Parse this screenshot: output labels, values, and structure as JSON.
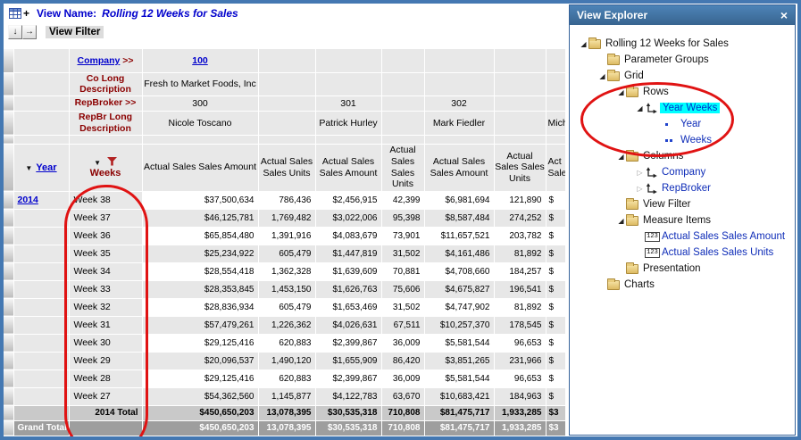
{
  "toolbar": {
    "view_name_label": "View Name:",
    "view_name": "Rolling 12 Weeks for Sales",
    "plus_glyph": "+",
    "move_down_glyph": "↓",
    "move_right_glyph": "→",
    "view_filter_label": "View Filter"
  },
  "grid": {
    "sort_glyph": "▼",
    "headers": {
      "company_label": "Company",
      "company_suffix": " >>",
      "company_value": "100",
      "co_long_label": "Co Long Description",
      "co_long_value": "Fresh to Market Foods, Inc",
      "repbroker_label": "RepBroker >>",
      "repbroker_values": [
        "300",
        "301",
        "302"
      ],
      "repbr_long_label": "RepBr Long Description",
      "repbr_long_values": [
        "Nicole Toscano",
        "Patrick Hurley",
        "Mark Fiedler",
        "Mich"
      ],
      "year_label": "Year",
      "weeks_label": "Weeks"
    },
    "measure_headers": [
      "Actual Sales Sales Amount",
      "Actual Sales Sales Units",
      "Actual Sales Sales Amount",
      "Actual Sales Sales Units",
      "Actual Sales Sales Amount",
      "Actual Sales Sales Units",
      "Act Sale"
    ],
    "rows": [
      {
        "year": "2014",
        "week": "Week 38",
        "values": [
          "$37,500,634",
          "786,436",
          "$2,456,915",
          "42,399",
          "$6,981,694",
          "121,890",
          "$"
        ]
      },
      {
        "year": "",
        "week": "Week 37",
        "values": [
          "$46,125,781",
          "1,769,482",
          "$3,022,006",
          "95,398",
          "$8,587,484",
          "274,252",
          "$"
        ]
      },
      {
        "year": "",
        "week": "Week 36",
        "values": [
          "$65,854,480",
          "1,391,916",
          "$4,083,679",
          "73,901",
          "$11,657,521",
          "203,782",
          "$"
        ]
      },
      {
        "year": "",
        "week": "Week 35",
        "values": [
          "$25,234,922",
          "605,479",
          "$1,447,819",
          "31,502",
          "$4,161,486",
          "81,892",
          "$"
        ]
      },
      {
        "year": "",
        "week": "Week 34",
        "values": [
          "$28,554,418",
          "1,362,328",
          "$1,639,609",
          "70,881",
          "$4,708,660",
          "184,257",
          "$"
        ]
      },
      {
        "year": "",
        "week": "Week 33",
        "values": [
          "$28,353,845",
          "1,453,150",
          "$1,626,763",
          "75,606",
          "$4,675,827",
          "196,541",
          "$"
        ]
      },
      {
        "year": "",
        "week": "Week 32",
        "values": [
          "$28,836,934",
          "605,479",
          "$1,653,469",
          "31,502",
          "$4,747,902",
          "81,892",
          "$"
        ]
      },
      {
        "year": "",
        "week": "Week 31",
        "values": [
          "$57,479,261",
          "1,226,362",
          "$4,026,631",
          "67,511",
          "$10,257,370",
          "178,545",
          "$"
        ]
      },
      {
        "year": "",
        "week": "Week 30",
        "values": [
          "$29,125,416",
          "620,883",
          "$2,399,867",
          "36,009",
          "$5,581,544",
          "96,653",
          "$"
        ]
      },
      {
        "year": "",
        "week": "Week 29",
        "values": [
          "$20,096,537",
          "1,490,120",
          "$1,655,909",
          "86,420",
          "$3,851,265",
          "231,966",
          "$"
        ]
      },
      {
        "year": "",
        "week": "Week 28",
        "values": [
          "$29,125,416",
          "620,883",
          "$2,399,867",
          "36,009",
          "$5,581,544",
          "96,653",
          "$"
        ]
      },
      {
        "year": "",
        "week": "Week 27",
        "values": [
          "$54,362,560",
          "1,145,877",
          "$4,122,783",
          "63,670",
          "$10,683,421",
          "184,963",
          "$"
        ]
      }
    ],
    "totals": {
      "y2014": {
        "label": "2014 Total",
        "values": [
          "$450,650,203",
          "13,078,395",
          "$30,535,318",
          "710,808",
          "$81,475,717",
          "1,933,285",
          "$3"
        ]
      },
      "grand": {
        "label": "Grand Total",
        "values": [
          "$450,650,203",
          "13,078,395",
          "$30,535,318",
          "710,808",
          "$81,475,717",
          "1,933,285",
          "$3"
        ]
      }
    }
  },
  "explorer": {
    "title": "View Explorer",
    "close_glyph": "×",
    "tree": [
      {
        "label": "Rolling 12 Weeks for Sales",
        "level": 0,
        "icon": "folder",
        "arrow": "open",
        "style": "plain"
      },
      {
        "label": "Parameter Groups",
        "level": 1,
        "icon": "folder",
        "arrow": "none",
        "style": "plain"
      },
      {
        "label": "Grid",
        "level": 1,
        "icon": "folder",
        "arrow": "open",
        "style": "plain"
      },
      {
        "label": "Rows",
        "level": 2,
        "icon": "folder",
        "arrow": "open",
        "style": "plain"
      },
      {
        "label": "Year Weeks",
        "level": 3,
        "icon": "dimension",
        "arrow": "open",
        "style": "selected"
      },
      {
        "label": "Year",
        "level": 4,
        "icon": "bullet1",
        "arrow": "none",
        "style": "link"
      },
      {
        "label": "Weeks",
        "level": 4,
        "icon": "bullet2",
        "arrow": "none",
        "style": "link"
      },
      {
        "label": "Columns",
        "level": 2,
        "icon": "folder",
        "arrow": "open",
        "style": "plain"
      },
      {
        "label": "Company",
        "level": 3,
        "icon": "dimension",
        "arrow": "closed",
        "style": "link"
      },
      {
        "label": "RepBroker",
        "level": 3,
        "icon": "dimension",
        "arrow": "closed",
        "style": "link"
      },
      {
        "label": "View Filter",
        "level": 2,
        "icon": "folder",
        "arrow": "none",
        "style": "plain"
      },
      {
        "label": "Measure Items",
        "level": 2,
        "icon": "folder",
        "arrow": "open",
        "style": "plain"
      },
      {
        "label": "Actual Sales Sales Amount",
        "level": 3,
        "icon": "measure",
        "arrow": "none",
        "style": "link"
      },
      {
        "label": "Actual Sales Sales Units",
        "level": 3,
        "icon": "measure",
        "arrow": "none",
        "style": "link"
      },
      {
        "label": "Presentation",
        "level": 2,
        "icon": "folder",
        "arrow": "none",
        "style": "plain"
      },
      {
        "label": "Charts",
        "level": 1,
        "icon": "folder",
        "arrow": "none",
        "style": "plain"
      }
    ]
  },
  "colors": {
    "frame_blue": "#4478b2",
    "header_red": "#8b0000",
    "link_blue": "#0000cc",
    "selection_cyan": "#00ffff",
    "annotation_red": "#e01313",
    "total_row_bg": "#c9c9c9",
    "grand_total_bg": "#9e9e9e"
  }
}
